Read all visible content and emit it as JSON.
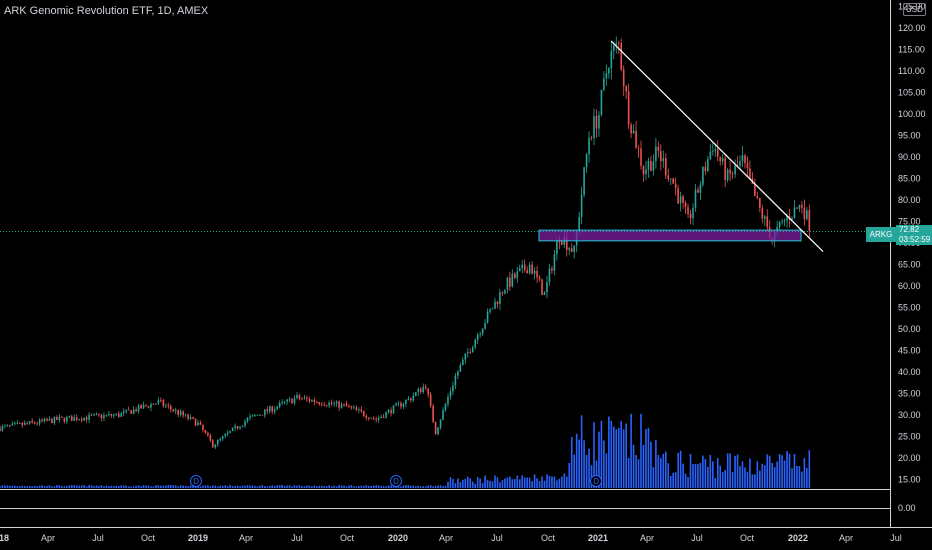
{
  "header": {
    "title": "ARK Genomic Revolution ETF, 1D, AMEX",
    "currency": "USD"
  },
  "price_tag": {
    "ticker": "ARKG",
    "price": "72.82",
    "countdown": "03:52:59"
  },
  "colors": {
    "up": "#26a69a",
    "down": "#ef5350",
    "volume": "#2962ff",
    "zone_fill": "#7b1fa2",
    "zone_border": "#26c6da",
    "trendline": "#ffffff",
    "background": "#000000"
  },
  "chart_data": {
    "type": "candlestick",
    "y_axis": {
      "ticks": [
        "0.00",
        "15.00",
        "20.00",
        "25.00",
        "30.00",
        "35.00",
        "40.00",
        "45.00",
        "50.00",
        "55.00",
        "60.00",
        "65.00",
        "70.00",
        "75.00",
        "80.00",
        "85.00",
        "90.00",
        "95.00",
        "100.00",
        "105.00",
        "110.00",
        "115.00",
        "120.00",
        "125.00"
      ],
      "price_range": [
        15,
        125
      ],
      "scale": "linear"
    },
    "x_axis": {
      "ticks": [
        {
          "label": "18",
          "bold": true
        },
        {
          "label": "Apr",
          "bold": false
        },
        {
          "label": "Jul",
          "bold": false
        },
        {
          "label": "Oct",
          "bold": false
        },
        {
          "label": "2019",
          "bold": true
        },
        {
          "label": "Apr",
          "bold": false
        },
        {
          "label": "Jul",
          "bold": false
        },
        {
          "label": "Oct",
          "bold": false
        },
        {
          "label": "2020",
          "bold": true
        },
        {
          "label": "Apr",
          "bold": false
        },
        {
          "label": "Jul",
          "bold": false
        },
        {
          "label": "Oct",
          "bold": false
        },
        {
          "label": "2021",
          "bold": true
        },
        {
          "label": "Apr",
          "bold": false
        },
        {
          "label": "Jul",
          "bold": false
        },
        {
          "label": "Oct",
          "bold": false
        },
        {
          "label": "2022",
          "bold": true
        },
        {
          "label": "Apr",
          "bold": false
        },
        {
          "label": "Jul",
          "bold": false
        }
      ]
    },
    "price_path": [
      {
        "t": 0.0,
        "p": 27
      },
      {
        "t": 1.2,
        "p": 29
      },
      {
        "t": 2.4,
        "p": 30
      },
      {
        "t": 3.2,
        "p": 33
      },
      {
        "t": 4.0,
        "p": 28
      },
      {
        "t": 4.3,
        "p": 23
      },
      {
        "t": 5.0,
        "p": 29
      },
      {
        "t": 6.0,
        "p": 34
      },
      {
        "t": 7.0,
        "p": 32
      },
      {
        "t": 7.6,
        "p": 29
      },
      {
        "t": 8.3,
        "p": 34
      },
      {
        "t": 8.6,
        "p": 37
      },
      {
        "t": 8.8,
        "p": 26
      },
      {
        "t": 9.2,
        "p": 39
      },
      {
        "t": 9.7,
        "p": 50
      },
      {
        "t": 10.2,
        "p": 60
      },
      {
        "t": 10.7,
        "p": 65
      },
      {
        "t": 11.0,
        "p": 58
      },
      {
        "t": 11.3,
        "p": 72
      },
      {
        "t": 11.6,
        "p": 68
      },
      {
        "t": 11.9,
        "p": 95
      },
      {
        "t": 12.1,
        "p": 100
      },
      {
        "t": 12.3,
        "p": 113
      },
      {
        "t": 12.5,
        "p": 116
      },
      {
        "t": 12.7,
        "p": 100
      },
      {
        "t": 13.0,
        "p": 87
      },
      {
        "t": 13.3,
        "p": 91
      },
      {
        "t": 13.6,
        "p": 84
      },
      {
        "t": 13.9,
        "p": 75
      },
      {
        "t": 14.2,
        "p": 86
      },
      {
        "t": 14.4,
        "p": 93
      },
      {
        "t": 14.7,
        "p": 85
      },
      {
        "t": 15.0,
        "p": 89
      },
      {
        "t": 15.3,
        "p": 79
      },
      {
        "t": 15.6,
        "p": 71
      },
      {
        "t": 15.9,
        "p": 76
      },
      {
        "t": 16.2,
        "p": 79
      },
      {
        "t": 16.4,
        "p": 73
      }
    ],
    "volume_markers": [
      "D",
      "D",
      "D"
    ],
    "drawings": {
      "descending_trendline": {
        "start_price": 117,
        "end_price": 68
      },
      "support_zone": {
        "low": 70.5,
        "high": 73.0
      }
    }
  }
}
